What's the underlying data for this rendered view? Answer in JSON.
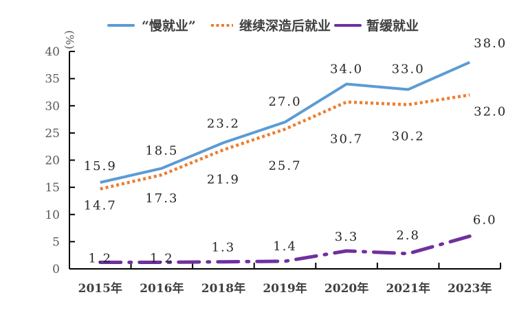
{
  "chart_data": {
    "type": "line",
    "title": "",
    "xlabel": "",
    "ylabel": "(%)",
    "ylim": [
      0,
      40
    ],
    "yticks": [
      0,
      5,
      10,
      15,
      20,
      25,
      30,
      35,
      40
    ],
    "grid": false,
    "legend_position": "top",
    "categories": [
      "2015年",
      "2016年",
      "2018年",
      "2019年",
      "2020年",
      "2021年",
      "2023年"
    ],
    "series": [
      {
        "name": "“慢就业”",
        "color": "#5B9BD5",
        "style": "solid",
        "values": [
          15.9,
          18.5,
          23.2,
          27.0,
          34.0,
          33.0,
          38.0
        ],
        "labels": [
          "15.9",
          "18.5",
          "23.2",
          "27.0",
          "34.0",
          "33.0",
          "38.0"
        ]
      },
      {
        "name": "继续深造后就业",
        "color": "#ED7D31",
        "style": "dotted",
        "values": [
          14.7,
          17.3,
          21.9,
          25.7,
          30.7,
          30.2,
          32.0
        ],
        "labels": [
          "14.7",
          "17.3",
          "21.9",
          "25.7",
          "30.7",
          "30.2",
          "32.0"
        ]
      },
      {
        "name": "暂缓就业",
        "color": "#7030A0",
        "style": "dash-dot",
        "values": [
          1.2,
          1.2,
          1.3,
          1.4,
          3.3,
          2.8,
          6.0
        ],
        "labels": [
          "1.2",
          "1.2",
          "1.3",
          "1.4",
          "3.3",
          "2.8",
          "6.0"
        ]
      }
    ]
  }
}
